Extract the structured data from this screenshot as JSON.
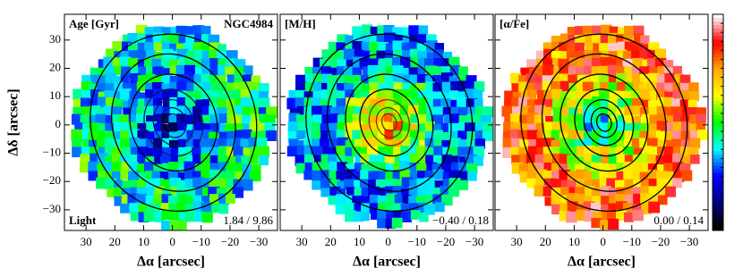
{
  "chart_data": [
    {
      "type": "map",
      "title": "Age [Gyr]",
      "galaxy": "NGC4984",
      "weighting": "Light",
      "range_label": "1.84 / 9.86",
      "xlabel": "Δα [arcsec]",
      "ylabel": "Δδ [arcsec]",
      "xlim": [
        37.5,
        -36.5
      ],
      "ylim": [
        -37.3,
        39.1
      ],
      "xticks": [
        30,
        20,
        10,
        0,
        {
          "value": -10,
          "label": "−10"
        },
        {
          "value": -20,
          "label": "−20"
        },
        {
          "value": -30,
          "label": "−30"
        }
      ],
      "yticks": [
        {
          "value": -30,
          "label": "−30"
        },
        {
          "value": -20,
          "label": "−20"
        },
        {
          "value": -10,
          "label": "−10"
        },
        0,
        10,
        20,
        30
      ]
    },
    {
      "type": "map",
      "title": "[M/H]",
      "range_label": "−0.40 / 0.18",
      "xlabel": "Δα [arcsec]",
      "xlim": [
        37.5,
        -36.5
      ],
      "ylim": [
        -37.3,
        39.1
      ],
      "xticks": [
        30,
        20,
        10,
        0,
        {
          "value": -10,
          "label": "−10"
        },
        {
          "value": -20,
          "label": "−20"
        },
        {
          "value": -30,
          "label": "−30"
        }
      ],
      "yticks": [
        -30,
        -20,
        -10,
        0,
        10,
        20,
        30
      ]
    },
    {
      "type": "map",
      "title": "[α/Fe]",
      "range_label": "0.00 / 0.14",
      "xlabel": "Δα [arcsec]",
      "xlim": [
        37.5,
        -36.5
      ],
      "ylim": [
        -37.3,
        39.1
      ],
      "xticks": [
        30,
        20,
        10,
        0,
        {
          "value": -10,
          "label": "−10"
        },
        {
          "value": -20,
          "label": "−20"
        },
        {
          "value": -30,
          "label": "−30"
        }
      ],
      "yticks": [
        -30,
        -20,
        -10,
        0,
        10,
        20,
        30
      ]
    }
  ],
  "colorbar": {
    "colors": [
      "#ffffff",
      "#ff0000",
      "#ffa500",
      "#ffff00",
      "#00ff00",
      "#00ffff",
      "#0000ff",
      "#000080",
      "#000000"
    ]
  }
}
